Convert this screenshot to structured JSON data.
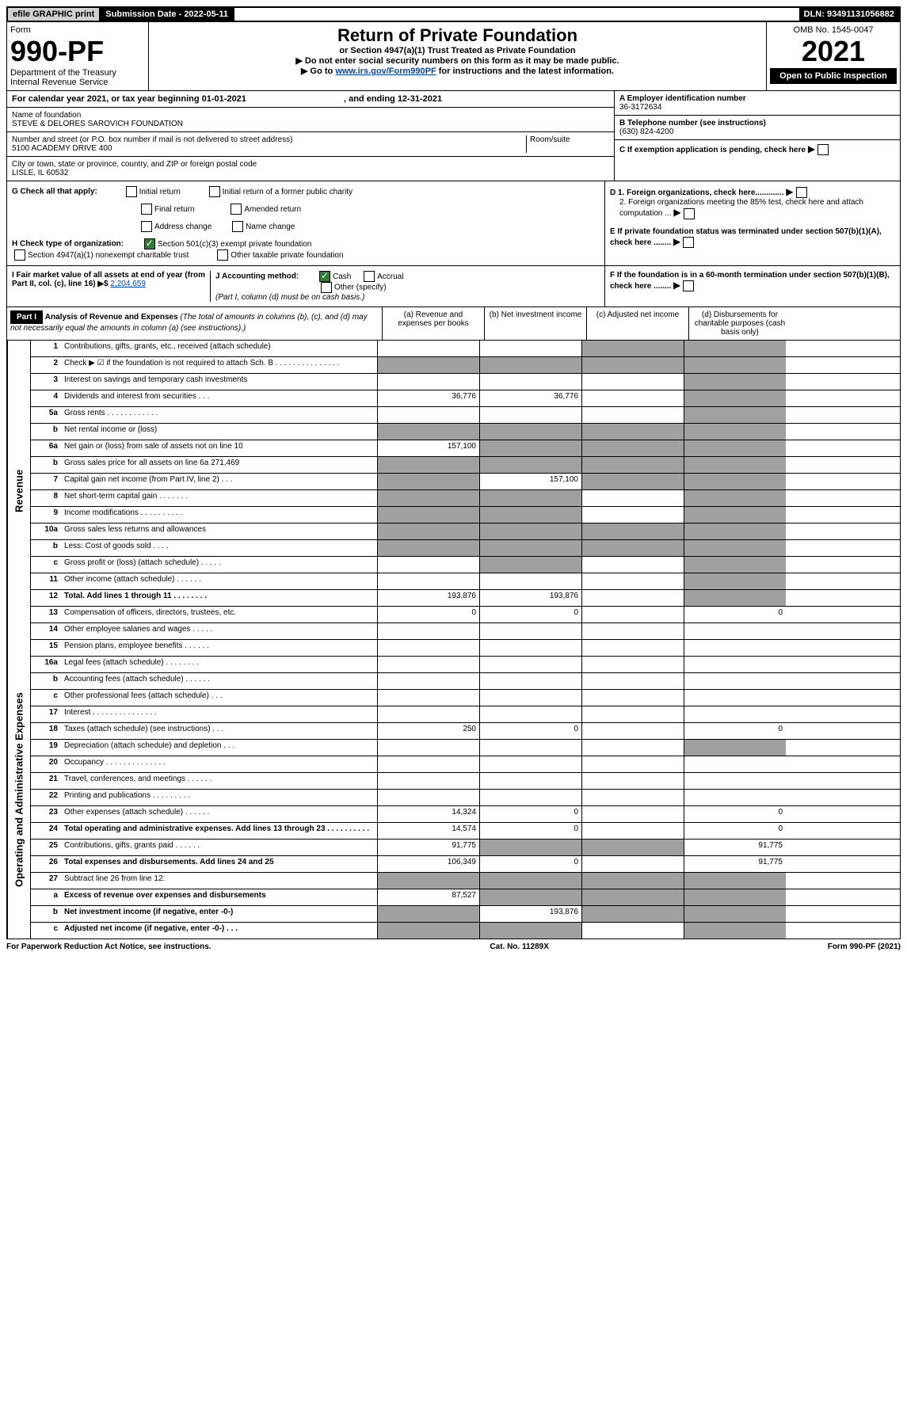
{
  "topbar": {
    "efile": "efile GRAPHIC print",
    "submission": "Submission Date - 2022-05-11",
    "dln": "DLN: 93491131056882"
  },
  "header": {
    "form_label": "Form",
    "form_number": "990-PF",
    "dept": "Department of the Treasury",
    "irs": "Internal Revenue Service",
    "title": "Return of Private Foundation",
    "subtitle": "or Section 4947(a)(1) Trust Treated as Private Foundation",
    "note1": "▶ Do not enter social security numbers on this form as it may be made public.",
    "note2_pre": "▶ Go to ",
    "note2_link": "www.irs.gov/Form990PF",
    "note2_post": " for instructions and the latest information.",
    "omb": "OMB No. 1545-0047",
    "year": "2021",
    "open": "Open to Public Inspection"
  },
  "cal": {
    "text": "For calendar year 2021, or tax year beginning 01-01-2021",
    "ending": ", and ending 12-31-2021"
  },
  "info": {
    "name_label": "Name of foundation",
    "name": "STEVE & DELORES SAROVICH FOUNDATION",
    "street_label": "Number and street (or P.O. box number if mail is not delivered to street address)",
    "street": "5100 ACADEMY DRIVE 400",
    "room_label": "Room/suite",
    "city_label": "City or town, state or province, country, and ZIP or foreign postal code",
    "city": "LISLE, IL  60532",
    "ein_label": "A Employer identification number",
    "ein": "36-3172634",
    "phone_label": "B Telephone number (see instructions)",
    "phone": "(630) 824-4200",
    "c_label": "C If exemption application is pending, check here",
    "d1": "D 1. Foreign organizations, check here.............",
    "d2": "2. Foreign organizations meeting the 85% test, check here and attach computation ...",
    "e_label": "E  If private foundation status was terminated under section 507(b)(1)(A), check here ........",
    "f_label": "F  If the foundation is in a 60-month termination under section 507(b)(1)(B), check here ........"
  },
  "g": {
    "label": "G Check all that apply:",
    "initial": "Initial return",
    "final": "Final return",
    "address": "Address change",
    "initial_former": "Initial return of a former public charity",
    "amended": "Amended return",
    "name_change": "Name change"
  },
  "h": {
    "label": "H Check type of organization:",
    "opt1": "Section 501(c)(3) exempt private foundation",
    "opt2": "Section 4947(a)(1) nonexempt charitable trust",
    "opt3": "Other taxable private foundation"
  },
  "i": {
    "label": "I Fair market value of all assets at end of year (from Part II, col. (c), line 16) ▶$",
    "value": "2,204,659"
  },
  "j": {
    "label": "J Accounting method:",
    "cash": "Cash",
    "accrual": "Accrual",
    "other": "Other (specify)",
    "note": "(Part I, column (d) must be on cash basis.)"
  },
  "part1": {
    "label": "Part I",
    "title": "Analysis of Revenue and Expenses",
    "title_note": "(The total of amounts in columns (b), (c), and (d) may not necessarily equal the amounts in column (a) (see instructions).)",
    "col_a": "(a)  Revenue and expenses per books",
    "col_b": "(b)  Net investment income",
    "col_c": "(c)  Adjusted net income",
    "col_d": "(d)  Disbursements for charitable purposes (cash basis only)"
  },
  "sides": {
    "revenue": "Revenue",
    "expenses": "Operating and Administrative Expenses"
  },
  "lines": [
    {
      "num": "1",
      "desc": "Contributions, gifts, grants, etc., received (attach schedule)",
      "a": "",
      "b": "",
      "c": "grey",
      "d": "grey"
    },
    {
      "num": "2",
      "desc": "Check ▶ ☑ if the foundation is not required to attach Sch. B    .  .  .  .  .  .  .  .  .  .  .  .  .  .  .",
      "a": "grey",
      "b": "grey",
      "c": "grey",
      "d": "grey"
    },
    {
      "num": "3",
      "desc": "Interest on savings and temporary cash investments",
      "a": "",
      "b": "",
      "c": "",
      "d": "grey"
    },
    {
      "num": "4",
      "desc": "Dividends and interest from securities   .  .  .",
      "a": "36,776",
      "b": "36,776",
      "c": "",
      "d": "grey"
    },
    {
      "num": "5a",
      "desc": "Gross rents    .  .  .  .  .  .  .  .  .  .  .  .",
      "a": "",
      "b": "",
      "c": "",
      "d": "grey"
    },
    {
      "num": "b",
      "desc": "Net rental income or (loss)  ",
      "a": "grey",
      "b": "grey",
      "c": "grey",
      "d": "grey"
    },
    {
      "num": "6a",
      "desc": "Net gain or (loss) from sale of assets not on line 10",
      "a": "157,100",
      "b": "grey",
      "c": "grey",
      "d": "grey"
    },
    {
      "num": "b",
      "desc": "Gross sales price for all assets on line 6a      271,469",
      "a": "grey",
      "b": "grey",
      "c": "grey",
      "d": "grey"
    },
    {
      "num": "7",
      "desc": "Capital gain net income (from Part IV, line 2)   .  .  .",
      "a": "grey",
      "b": "157,100",
      "c": "grey",
      "d": "grey"
    },
    {
      "num": "8",
      "desc": "Net short-term capital gain   .  .  .  .  .  .  .",
      "a": "grey",
      "b": "grey",
      "c": "",
      "d": "grey"
    },
    {
      "num": "9",
      "desc": "Income modifications .  .  .  .  .  .  .  .  .  .",
      "a": "grey",
      "b": "grey",
      "c": "",
      "d": "grey"
    },
    {
      "num": "10a",
      "desc": "Gross sales less returns and allowances",
      "a": "grey",
      "b": "grey",
      "c": "grey",
      "d": "grey"
    },
    {
      "num": "b",
      "desc": "Less: Cost of goods sold   .  .  .  .",
      "a": "grey",
      "b": "grey",
      "c": "grey",
      "d": "grey"
    },
    {
      "num": "c",
      "desc": "Gross profit or (loss) (attach schedule)   .  .  .  .  .",
      "a": "",
      "b": "grey",
      "c": "",
      "d": "grey"
    },
    {
      "num": "11",
      "desc": "Other income (attach schedule)   .  .  .  .  .  .",
      "a": "",
      "b": "",
      "c": "",
      "d": "grey"
    },
    {
      "num": "12",
      "desc": "Total. Add lines 1 through 11  .  .  .  .  .  .  .  .",
      "a": "193,876",
      "b": "193,876",
      "c": "",
      "d": "grey",
      "bold": true
    },
    {
      "num": "13",
      "desc": "Compensation of officers, directors, trustees, etc.",
      "a": "0",
      "b": "0",
      "c": "",
      "d": "0"
    },
    {
      "num": "14",
      "desc": "Other employee salaries and wages   .  .  .  .  .",
      "a": "",
      "b": "",
      "c": "",
      "d": ""
    },
    {
      "num": "15",
      "desc": "Pension plans, employee benefits  .  .  .  .  .  .",
      "a": "",
      "b": "",
      "c": "",
      "d": ""
    },
    {
      "num": "16a",
      "desc": "Legal fees (attach schedule) .  .  .  .  .  .  .  .",
      "a": "",
      "b": "",
      "c": "",
      "d": ""
    },
    {
      "num": "b",
      "desc": "Accounting fees (attach schedule) .  .  .  .  .  .",
      "a": "",
      "b": "",
      "c": "",
      "d": ""
    },
    {
      "num": "c",
      "desc": "Other professional fees (attach schedule)   .  .  .",
      "a": "",
      "b": "",
      "c": "",
      "d": ""
    },
    {
      "num": "17",
      "desc": "Interest .  .  .  .  .  .  .  .  .  .  .  .  .  .  .",
      "a": "",
      "b": "",
      "c": "",
      "d": ""
    },
    {
      "num": "18",
      "desc": "Taxes (attach schedule) (see instructions)   .  .  .",
      "a": "250",
      "b": "0",
      "c": "",
      "d": "0"
    },
    {
      "num": "19",
      "desc": "Depreciation (attach schedule) and depletion   .  .  .",
      "a": "",
      "b": "",
      "c": "",
      "d": "grey"
    },
    {
      "num": "20",
      "desc": "Occupancy .  .  .  .  .  .  .  .  .  .  .  .  .  .",
      "a": "",
      "b": "",
      "c": "",
      "d": ""
    },
    {
      "num": "21",
      "desc": "Travel, conferences, and meetings .  .  .  .  .  .",
      "a": "",
      "b": "",
      "c": "",
      "d": ""
    },
    {
      "num": "22",
      "desc": "Printing and publications .  .  .  .  .  .  .  .  .",
      "a": "",
      "b": "",
      "c": "",
      "d": ""
    },
    {
      "num": "23",
      "desc": "Other expenses (attach schedule) .  .  .  .  .  .",
      "a": "14,324",
      "b": "0",
      "c": "",
      "d": "0"
    },
    {
      "num": "24",
      "desc": "Total operating and administrative expenses. Add lines 13 through 23  .  .  .  .  .  .  .  .  .  .",
      "a": "14,574",
      "b": "0",
      "c": "",
      "d": "0",
      "bold": true
    },
    {
      "num": "25",
      "desc": "Contributions, gifts, grants paid   .  .  .  .  .  .",
      "a": "91,775",
      "b": "grey",
      "c": "grey",
      "d": "91,775"
    },
    {
      "num": "26",
      "desc": "Total expenses and disbursements. Add lines 24 and 25",
      "a": "106,349",
      "b": "0",
      "c": "",
      "d": "91,775",
      "bold": true
    },
    {
      "num": "27",
      "desc": "Subtract line 26 from line 12:",
      "a": "grey",
      "b": "grey",
      "c": "grey",
      "d": "grey"
    },
    {
      "num": "a",
      "desc": "Excess of revenue over expenses and disbursements",
      "a": "87,527",
      "b": "grey",
      "c": "grey",
      "d": "grey",
      "bold": true
    },
    {
      "num": "b",
      "desc": "Net investment income (if negative, enter -0-)",
      "a": "grey",
      "b": "193,876",
      "c": "grey",
      "d": "grey",
      "bold": true
    },
    {
      "num": "c",
      "desc": "Adjusted net income (if negative, enter -0-)   .  .  .",
      "a": "grey",
      "b": "grey",
      "c": "",
      "d": "grey",
      "bold": true
    }
  ],
  "footer": {
    "left": "For Paperwork Reduction Act Notice, see instructions.",
    "center": "Cat. No. 11289X",
    "right": "Form 990-PF (2021)"
  }
}
